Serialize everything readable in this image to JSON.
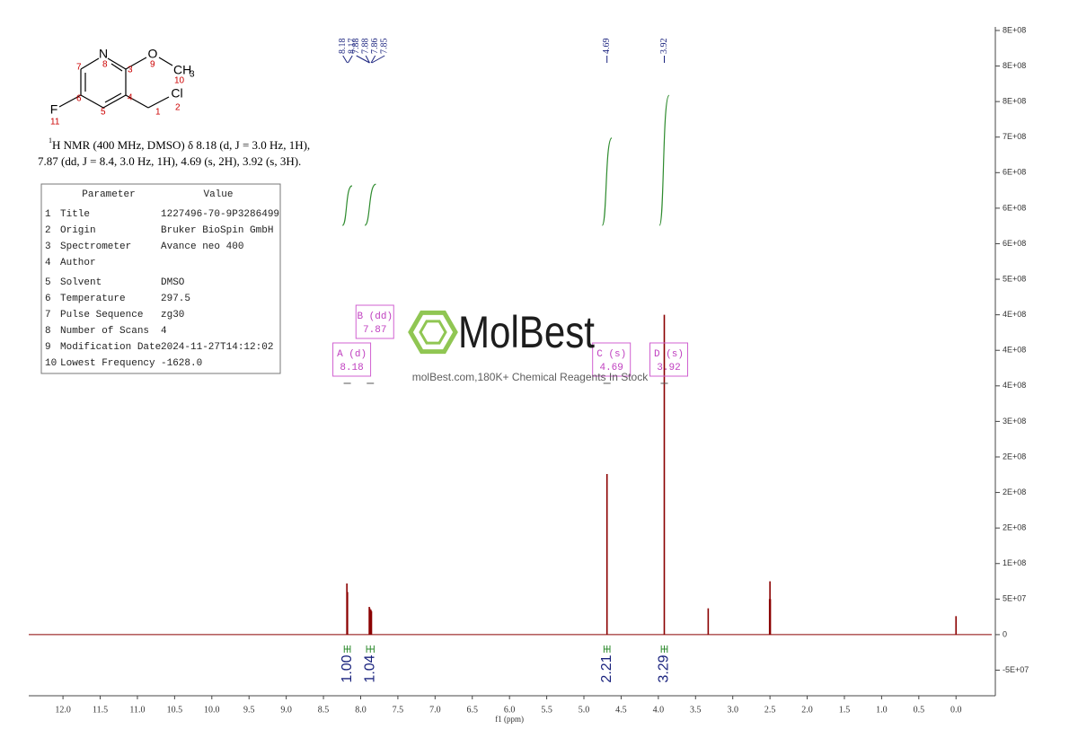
{
  "chart_data": {
    "type": "nmr",
    "x_label": "f1 (ppm)",
    "xlim": [
      12.46,
      -0.48
    ],
    "xticks": [
      {
        "value": 12,
        "label": "12.0"
      },
      11.5,
      {
        "value": 11,
        "label": "11.0"
      },
      10.5,
      {
        "value": 10,
        "label": "10.0"
      },
      9.5,
      {
        "value": 9,
        "label": "9.0"
      },
      8.5,
      {
        "value": 8,
        "label": "8.0"
      },
      7.5,
      {
        "value": 7,
        "label": "7.0"
      },
      6.5,
      {
        "value": 6,
        "label": "6.0"
      },
      5.5,
      {
        "value": 5,
        "label": "5.0"
      },
      4.5,
      {
        "value": 4,
        "label": "4.0"
      },
      3.5,
      {
        "value": 3,
        "label": "3.0"
      },
      2.5,
      {
        "value": 2,
        "label": "2.0"
      },
      1.5,
      {
        "value": 1,
        "label": "1.0"
      },
      0.5,
      {
        "value": 0,
        "label": "0.0"
      }
    ],
    "ylim": [
      -86000000,
      855000000
    ],
    "yticks": [
      {
        "value": 850000000,
        "label": "8E+08"
      },
      {
        "value": 800000000,
        "label": "8E+08"
      },
      {
        "value": 750000000,
        "label": "8E+08"
      },
      {
        "value": 700000000,
        "label": "7E+08"
      },
      {
        "value": 650000000,
        "label": "6E+08"
      },
      {
        "value": 600000000,
        "label": "6E+08"
      },
      {
        "value": 550000000,
        "label": "6E+08"
      },
      {
        "value": 500000000,
        "label": "5E+08"
      },
      {
        "value": 450000000,
        "label": "4E+08"
      },
      {
        "value": 400000000,
        "label": "4E+08"
      },
      {
        "value": 350000000,
        "label": "4E+08"
      },
      {
        "value": 300000000,
        "label": "3E+08"
      },
      {
        "value": 250000000,
        "label": "2E+08"
      },
      {
        "value": 200000000,
        "label": "2E+08"
      },
      {
        "value": 150000000,
        "label": "2E+08"
      },
      {
        "value": 100000000,
        "label": "1E+08"
      },
      {
        "value": 50000000,
        "label": "5E+07"
      },
      0,
      {
        "value": -50000000,
        "label": "-5E+07"
      }
    ],
    "x": [
      8.185,
      8.177,
      7.884,
      7.877,
      7.863,
      7.855,
      4.69,
      3.92,
      3.33,
      2.505,
      2.5,
      2.495,
      0.0
    ],
    "values": [
      72000000,
      60000000,
      39000000,
      37000000,
      35000000,
      33000000,
      226000000,
      450000000,
      37000000,
      50000000,
      75000000,
      50000000,
      26000000
    ],
    "color": "#8b0000",
    "peak_labels": [
      8.18,
      8.17,
      7.88,
      7.88,
      7.86,
      7.85,
      4.69,
      3.92
    ],
    "integrals": {
      "ranges": [
        [
          8.22,
          8.14
        ],
        [
          7.92,
          7.82
        ],
        [
          4.73,
          4.65
        ],
        [
          3.96,
          3.88
        ]
      ],
      "values": [
        1,
        1.04,
        2.21,
        3.29
      ],
      "value_labels": [
        "1.00",
        "1.04",
        "2.21",
        "3.29"
      ]
    },
    "multiplets": [
      {
        "label": "A (d)",
        "shift": 8.18
      },
      {
        "label": "B (dd)",
        "shift": 7.87
      },
      {
        "label": "C (s)",
        "shift": 4.69
      },
      {
        "label": "D (s)",
        "shift": 3.92
      }
    ]
  },
  "molecule": {
    "atoms": [
      "N",
      "O",
      "CH",
      "F",
      "Cl"
    ],
    "subscript": "3",
    "numbers": [
      "1",
      "2",
      "3",
      "4",
      "5",
      "6",
      "7",
      "8",
      "9",
      "10",
      "11"
    ]
  },
  "description": {
    "sup": "1",
    "lines": [
      "H NMR (400 MHz, DMSO) δ 8.18 (d, J = 3.0 Hz, 1H),",
      "7.87 (dd, J = 8.4, 3.0 Hz, 1H), 4.69 (s, 2H), 3.92 (s, 3H)."
    ]
  },
  "parameters": {
    "header": [
      "Parameter",
      "Value"
    ],
    "rows": [
      [
        "1",
        "Title",
        "1227496-70-9P3286499"
      ],
      [
        "2",
        "Origin",
        "Bruker BioSpin GmbH"
      ],
      [
        "3",
        "Spectrometer",
        "Avance neo 400"
      ],
      [
        "4",
        "Author",
        ""
      ],
      [
        "5",
        "Solvent",
        "DMSO"
      ],
      [
        "6",
        "Temperature",
        "297.5"
      ],
      [
        "7",
        "Pulse Sequence",
        "zg30"
      ],
      [
        "8",
        "Number of Scans",
        "4"
      ],
      [
        "9",
        "Modification Date",
        "2024-11-27T14:12:02"
      ],
      [
        "10",
        "Lowest Frequency",
        "-1628.0"
      ]
    ]
  },
  "watermark": {
    "brand": "MolBest",
    "tagline": "molBest.com,180K+ Chemical Reagents In Stock"
  }
}
